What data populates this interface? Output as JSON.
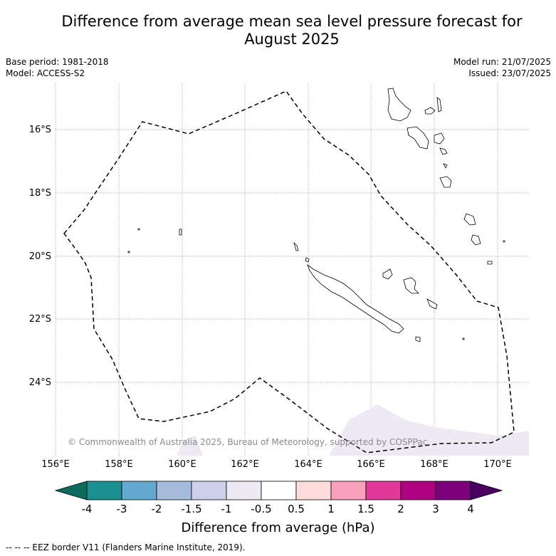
{
  "title_line1": "Difference from average mean sea level pressure forecast for",
  "title_line2": "August 2025",
  "base_period": "Base period: 1981-2018",
  "model": "Model: ACCESS-S2",
  "model_run": "Model run: 21/07/2025",
  "issued": "Issued: 23/07/2025",
  "latitude_labels": [
    "16°S",
    "18°S",
    "20°S",
    "22°S",
    "24°S"
  ],
  "longitude_labels": [
    "156°E",
    "158°E",
    "160°E",
    "162°E",
    "164°E",
    "166°E",
    "168°E",
    "170°E"
  ],
  "credit": "© Commonwealth of Australia 2025, Bureau of Meteorology, supported by COSPPac",
  "colorbar": {
    "title": "Difference from average (hPa)",
    "tick_labels": [
      "-4",
      "-3",
      "-2",
      "-1.5",
      "-1",
      "-0.5",
      "0.5",
      "1",
      "1.5",
      "2",
      "3",
      "4"
    ],
    "colors": [
      "#0d6b5e",
      "#1a9090",
      "#63a9d0",
      "#a6bcdc",
      "#cdd0e8",
      "#eeeaf3",
      "#ffffff",
      "#ffdcdc",
      "#f8a0bc",
      "#df3898",
      "#ae0081",
      "#7c007c",
      "#4a0060"
    ]
  },
  "footer": "--  --  -- EEZ border V11 (Flanders Marine Institute, 2019)."
}
